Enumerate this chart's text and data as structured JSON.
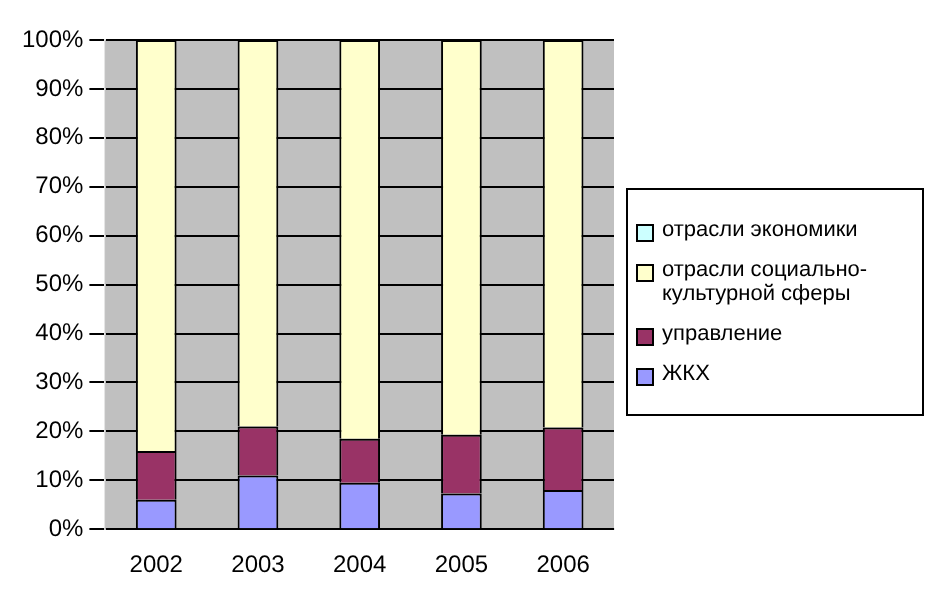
{
  "chart_data": {
    "type": "bar",
    "stacked": true,
    "categories": [
      "2002",
      "2003",
      "2004",
      "2005",
      "2006"
    ],
    "series": [
      {
        "name": "ЖКХ",
        "color": "#9999ff",
        "values": [
          6,
          11,
          9.5,
          7.3,
          8
        ]
      },
      {
        "name": "управление",
        "color": "#993366",
        "values": [
          10,
          10,
          9,
          12,
          12.8
        ]
      },
      {
        "name": "отрасли социально-культурной сферы",
        "color": "#ffffcc",
        "values": [
          84,
          79,
          81.5,
          80.7,
          79.2
        ]
      },
      {
        "name": "отрасли экономики",
        "color": "#ccffff",
        "values": [
          null,
          null,
          null,
          null,
          null
        ]
      }
    ],
    "ylim": [
      0,
      100
    ],
    "yticks": [
      {
        "value": 0,
        "label": "0%"
      },
      {
        "value": 10,
        "label": "10%"
      },
      {
        "value": 20,
        "label": "20%"
      },
      {
        "value": 30,
        "label": "30%"
      },
      {
        "value": 40,
        "label": "40%"
      },
      {
        "value": 50,
        "label": "50%"
      },
      {
        "value": 60,
        "label": "60%"
      },
      {
        "value": 70,
        "label": "70%"
      },
      {
        "value": 80,
        "label": "80%"
      },
      {
        "value": 90,
        "label": "90%"
      },
      {
        "value": 100,
        "label": "100%"
      }
    ],
    "grid": "y",
    "legend": "right"
  }
}
